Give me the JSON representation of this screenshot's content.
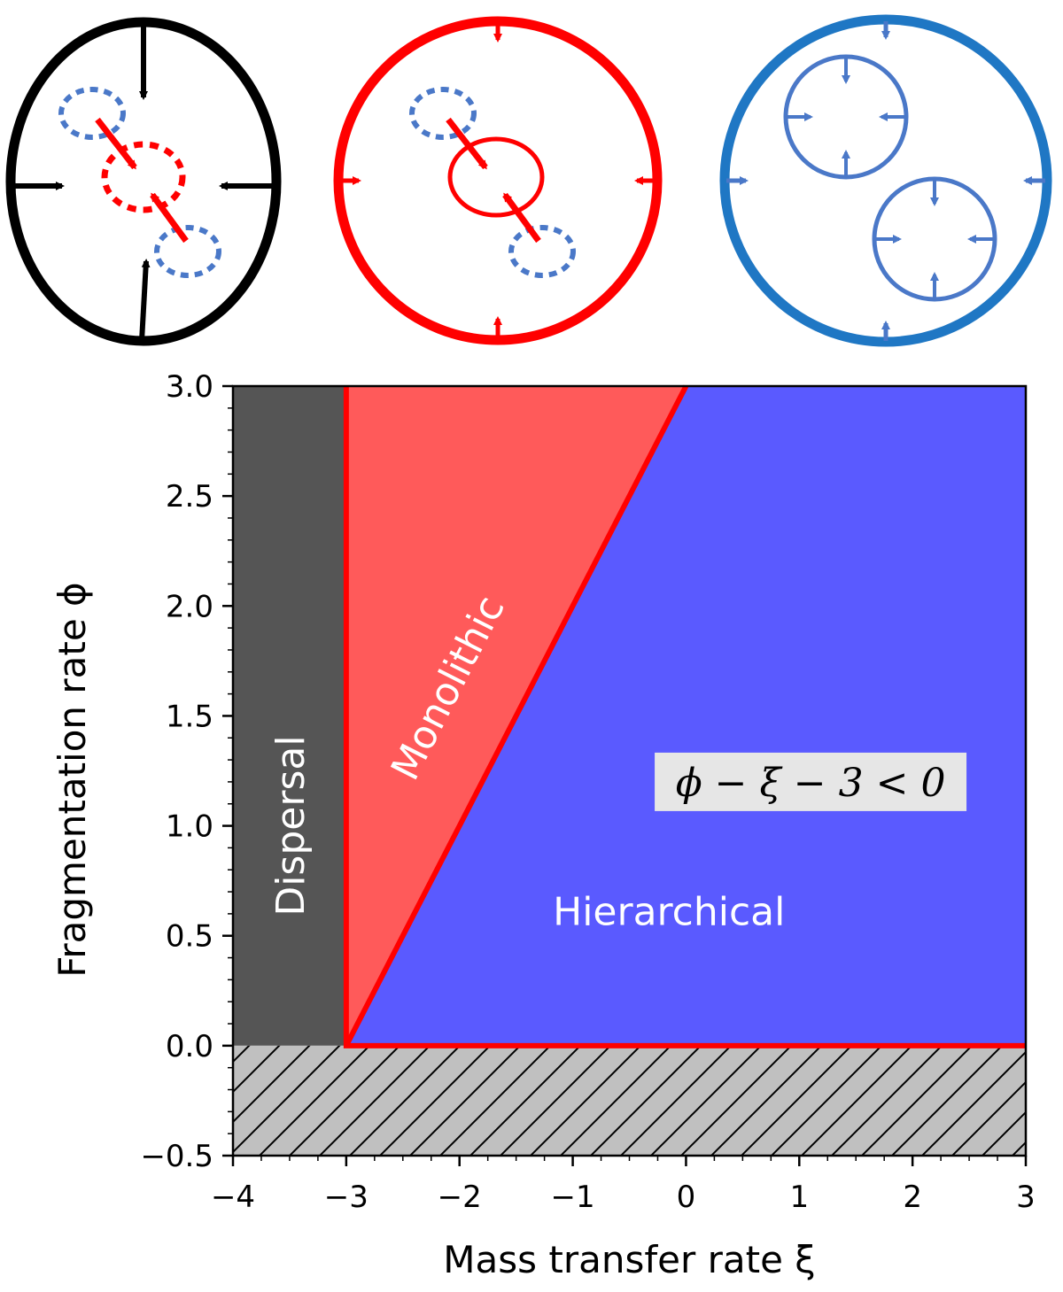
{
  "chart_data": {
    "type": "area",
    "xlabel": "Mass transfer rate ξ",
    "ylabel": "Fragmentation rate ϕ",
    "xlim": [
      -4,
      3
    ],
    "ylim": [
      -0.5,
      3.0
    ],
    "x_ticks": [
      "−4",
      "−3",
      "−2",
      "−1",
      "0",
      "1",
      "2",
      "3"
    ],
    "y_ticks": [
      "−0.5",
      "0.0",
      "0.5",
      "1.0",
      "1.5",
      "2.0",
      "2.5",
      "3.0"
    ],
    "x_tick_values": [
      -4,
      -3,
      -2,
      -1,
      0,
      1,
      2,
      3
    ],
    "y_tick_values": [
      -0.5,
      0.0,
      0.5,
      1.0,
      1.5,
      2.0,
      2.5,
      3.0
    ],
    "regions": [
      {
        "label": "Dispersal",
        "color": "#555555",
        "polygon": [
          [
            -4,
            0
          ],
          [
            -3,
            0
          ],
          [
            -3,
            3
          ],
          [
            -4,
            3
          ]
        ]
      },
      {
        "label": "Monolithic",
        "color": "#ff5a5a",
        "polygon": [
          [
            -3,
            0
          ],
          [
            -3,
            3
          ],
          [
            0,
            3
          ]
        ]
      },
      {
        "label": "Hierarchical",
        "color": "#5a5aff",
        "polygon": [
          [
            -3,
            0
          ],
          [
            0,
            3
          ],
          [
            3,
            3
          ],
          [
            3,
            0
          ]
        ]
      },
      {
        "label": "",
        "color": "#c0c0c0",
        "hatched": true,
        "polygon": [
          [
            -4,
            -0.5
          ],
          [
            3,
            -0.5
          ],
          [
            3,
            0
          ],
          [
            -4,
            0
          ]
        ]
      }
    ],
    "boundary": {
      "color": "#ff0000",
      "points": [
        [
          3,
          0
        ],
        [
          -3,
          0
        ],
        [
          -3,
          3
        ]
      ],
      "diagonal": [
        [
          -3,
          0
        ],
        [
          0,
          3
        ]
      ]
    },
    "annotation": {
      "text": "ϕ − ξ − 3 < 0",
      "x": 1.1,
      "y": 1.2
    },
    "colors": {
      "black": "#000000",
      "red": "#ff0000",
      "blue": "#1f77c4",
      "dashed_blue": "#4a78c8"
    },
    "icons": [
      "anisotropic-collapse-icon",
      "monolithic-collapse-icon",
      "hierarchical-collapse-icon"
    ]
  }
}
